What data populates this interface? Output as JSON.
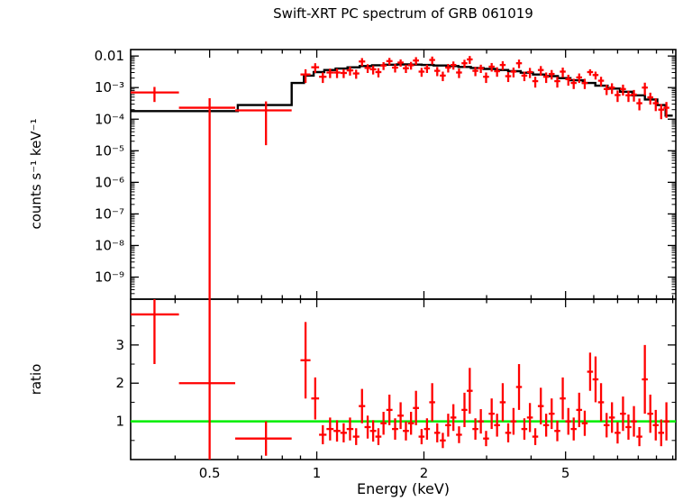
{
  "colors": {
    "data": "#ff0000",
    "model": "#000000",
    "unity_line": "#00ee00",
    "axis": "#000000",
    "background": "#ffffff"
  },
  "chart_data": {
    "type": "scatter",
    "title": "Swift-XRT PC spectrum of GRB 061019",
    "xlabel": "Energy (keV)",
    "xscale": "log",
    "xlim": [
      0.3,
      10.2
    ],
    "x_major_ticks": [
      {
        "value": 0.5,
        "label": "0.5"
      },
      {
        "value": 1,
        "label": "1"
      },
      {
        "value": 2,
        "label": "2"
      },
      {
        "value": 5,
        "label": "5"
      }
    ],
    "x_minor_ticks": [
      0.4,
      0.6,
      0.7,
      0.8,
      0.9,
      3,
      4,
      6,
      7,
      8,
      9,
      10
    ],
    "top_panel": {
      "ylabel": "counts s⁻¹ keV⁻¹",
      "yscale": "log",
      "ylim": [
        2e-10,
        0.016
      ],
      "y_ticks": [
        {
          "value": 0.01,
          "label": "0.01"
        },
        {
          "value": 0.001,
          "label": "10⁻³"
        },
        {
          "value": 0.0001,
          "label": "10⁻⁴"
        },
        {
          "value": 1e-05,
          "label": "10⁻⁵"
        },
        {
          "value": 1e-06,
          "label": "10⁻⁶"
        },
        {
          "value": 1e-07,
          "label": "10⁻⁷"
        },
        {
          "value": 1e-08,
          "label": "10⁻⁸"
        },
        {
          "value": 1e-09,
          "label": "10⁻⁹"
        }
      ],
      "model_step": {
        "edges": [
          0.3,
          0.6,
          0.85,
          0.92,
          0.98,
          1.05,
          1.13,
          1.22,
          1.32,
          1.43,
          1.55,
          1.68,
          1.82,
          1.97,
          2.13,
          2.31,
          2.5,
          2.71,
          2.94,
          3.18,
          3.45,
          3.74,
          4.05,
          4.39,
          4.76,
          5.16,
          5.59,
          6.06,
          6.56,
          7.11,
          7.7,
          8.35,
          9.05,
          9.55,
          10.0
        ],
        "values": [
          0.00018,
          0.00028,
          0.0014,
          0.0024,
          0.0031,
          0.0036,
          0.004,
          0.0044,
          0.0048,
          0.0051,
          0.0053,
          0.0054,
          0.00535,
          0.0052,
          0.005,
          0.0048,
          0.0045,
          0.0042,
          0.0039,
          0.0036,
          0.0033,
          0.00295,
          0.0026,
          0.0023,
          0.002,
          0.0017,
          0.0014,
          0.00115,
          0.00093,
          0.00074,
          0.00057,
          0.00042,
          0.00028,
          0.00013
        ]
      }
    },
    "bottom_panel": {
      "ylabel": "ratio",
      "yscale": "linear",
      "ylim": [
        0,
        4.2
      ],
      "unity_line": 1,
      "y_ticks": [
        {
          "value": 1,
          "label": "1"
        },
        {
          "value": 2,
          "label": "2"
        },
        {
          "value": 3,
          "label": "3"
        }
      ],
      "y_minor_ticks": [
        0.5,
        1.5,
        2.5,
        3.5
      ]
    },
    "points_format": [
      "energy_keV",
      "energy_halfwidth_keV",
      "rate_counts_s_keV",
      "rate_err",
      "ratio",
      "ratio_err"
    ],
    "points": [
      [
        0.35,
        0.06,
        0.0007,
        0.00035,
        3.8,
        1.3
      ],
      [
        0.5,
        0.09,
        0.00023,
        0.00023,
        2.0,
        2.2
      ],
      [
        0.72,
        0.13,
        0.00019,
        0.000175,
        0.55,
        0.45
      ],
      [
        0.93,
        0.03,
        0.0026,
        0.0012,
        2.6,
        1.0
      ],
      [
        0.99,
        0.025,
        0.0044,
        0.0015,
        1.6,
        0.55
      ],
      [
        1.04,
        0.025,
        0.0022,
        0.0008,
        0.65,
        0.25
      ],
      [
        1.09,
        0.025,
        0.003,
        0.001,
        0.8,
        0.3
      ],
      [
        1.14,
        0.025,
        0.003,
        0.001,
        0.75,
        0.28
      ],
      [
        1.19,
        0.025,
        0.0029,
        0.0009,
        0.7,
        0.25
      ],
      [
        1.24,
        0.027,
        0.0035,
        0.0011,
        0.8,
        0.3
      ],
      [
        1.29,
        0.027,
        0.0028,
        0.0009,
        0.6,
        0.22
      ],
      [
        1.34,
        0.028,
        0.0067,
        0.0019,
        1.4,
        0.45
      ],
      [
        1.39,
        0.028,
        0.0042,
        0.0013,
        0.85,
        0.3
      ],
      [
        1.44,
        0.029,
        0.0038,
        0.0012,
        0.75,
        0.28
      ],
      [
        1.49,
        0.029,
        0.0031,
        0.001,
        0.6,
        0.22
      ],
      [
        1.54,
        0.03,
        0.005,
        0.0014,
        0.95,
        0.3
      ],
      [
        1.6,
        0.032,
        0.0069,
        0.0018,
        1.3,
        0.4
      ],
      [
        1.66,
        0.033,
        0.0043,
        0.0013,
        0.8,
        0.28
      ],
      [
        1.72,
        0.034,
        0.0062,
        0.0016,
        1.15,
        0.35
      ],
      [
        1.78,
        0.035,
        0.0041,
        0.0012,
        0.75,
        0.25
      ],
      [
        1.84,
        0.036,
        0.0051,
        0.0014,
        0.95,
        0.3
      ],
      [
        1.9,
        0.037,
        0.0072,
        0.002,
        1.35,
        0.45
      ],
      [
        1.97,
        0.038,
        0.0032,
        0.001,
        0.6,
        0.2
      ],
      [
        2.04,
        0.039,
        0.0041,
        0.0012,
        0.8,
        0.28
      ],
      [
        2.11,
        0.04,
        0.0075,
        0.0021,
        1.5,
        0.5
      ],
      [
        2.18,
        0.041,
        0.0034,
        0.0011,
        0.7,
        0.25
      ],
      [
        2.26,
        0.043,
        0.0024,
        0.0008,
        0.5,
        0.2
      ],
      [
        2.34,
        0.044,
        0.0043,
        0.0013,
        0.9,
        0.3
      ],
      [
        2.42,
        0.046,
        0.0052,
        0.0015,
        1.1,
        0.35
      ],
      [
        2.51,
        0.048,
        0.003,
        0.001,
        0.65,
        0.22
      ],
      [
        2.6,
        0.049,
        0.0059,
        0.0017,
        1.3,
        0.45
      ],
      [
        2.69,
        0.051,
        0.0078,
        0.0022,
        1.8,
        0.6
      ],
      [
        2.79,
        0.053,
        0.0034,
        0.0011,
        0.8,
        0.28
      ],
      [
        2.89,
        0.055,
        0.0041,
        0.0012,
        1.0,
        0.32
      ],
      [
        2.99,
        0.057,
        0.0022,
        0.0008,
        0.55,
        0.2
      ],
      [
        3.1,
        0.059,
        0.0046,
        0.0014,
        1.2,
        0.4
      ],
      [
        3.21,
        0.061,
        0.0033,
        0.0011,
        0.9,
        0.3
      ],
      [
        3.33,
        0.063,
        0.0052,
        0.0016,
        1.5,
        0.5
      ],
      [
        3.45,
        0.066,
        0.0023,
        0.0008,
        0.7,
        0.25
      ],
      [
        3.57,
        0.068,
        0.0032,
        0.0011,
        1.0,
        0.35
      ],
      [
        3.7,
        0.07,
        0.0059,
        0.0018,
        1.9,
        0.6
      ],
      [
        3.83,
        0.073,
        0.0024,
        0.0008,
        0.8,
        0.28
      ],
      [
        3.97,
        0.076,
        0.0031,
        0.0011,
        1.1,
        0.38
      ],
      [
        4.11,
        0.078,
        0.0016,
        0.0006,
        0.6,
        0.22
      ],
      [
        4.26,
        0.081,
        0.0036,
        0.0012,
        1.4,
        0.48
      ],
      [
        4.41,
        0.084,
        0.0022,
        0.0008,
        0.9,
        0.3
      ],
      [
        4.57,
        0.087,
        0.0027,
        0.0009,
        1.2,
        0.4
      ],
      [
        4.74,
        0.09,
        0.0016,
        0.0006,
        0.75,
        0.27
      ],
      [
        4.91,
        0.093,
        0.0032,
        0.0011,
        1.6,
        0.55
      ],
      [
        5.09,
        0.097,
        0.00185,
        0.0007,
        1.0,
        0.35
      ],
      [
        5.27,
        0.1,
        0.0014,
        0.0005,
        0.8,
        0.3
      ],
      [
        5.46,
        0.104,
        0.0021,
        0.0007,
        1.3,
        0.45
      ],
      [
        5.66,
        0.108,
        0.0014,
        0.0005,
        0.95,
        0.33
      ],
      [
        5.86,
        0.112,
        0.0031,
        0.0007,
        2.3,
        0.5
      ],
      [
        6.07,
        0.115,
        0.0025,
        0.0007,
        2.1,
        0.6
      ],
      [
        6.29,
        0.12,
        0.00165,
        0.00055,
        1.5,
        0.5
      ],
      [
        6.52,
        0.124,
        0.0009,
        0.00032,
        0.9,
        0.32
      ],
      [
        6.75,
        0.128,
        0.001,
        0.00037,
        1.1,
        0.4
      ],
      [
        7.0,
        0.133,
        0.00058,
        0.00023,
        0.7,
        0.28
      ],
      [
        7.25,
        0.138,
        0.0009,
        0.00034,
        1.2,
        0.45
      ],
      [
        7.51,
        0.143,
        0.00057,
        0.00022,
        0.85,
        0.33
      ],
      [
        7.78,
        0.148,
        0.0006,
        0.00024,
        1.0,
        0.4
      ],
      [
        8.06,
        0.153,
        0.00032,
        0.00013,
        0.6,
        0.25
      ],
      [
        8.35,
        0.159,
        0.001,
        0.00043,
        2.1,
        0.9
      ],
      [
        8.65,
        0.164,
        0.00049,
        0.0002,
        1.2,
        0.5
      ],
      [
        8.96,
        0.17,
        0.00032,
        0.00014,
        0.9,
        0.4
      ],
      [
        9.28,
        0.176,
        0.0002,
        0.0001,
        0.7,
        0.35
      ],
      [
        9.6,
        0.182,
        0.00023,
        0.00012,
        1.0,
        0.5
      ]
    ]
  }
}
